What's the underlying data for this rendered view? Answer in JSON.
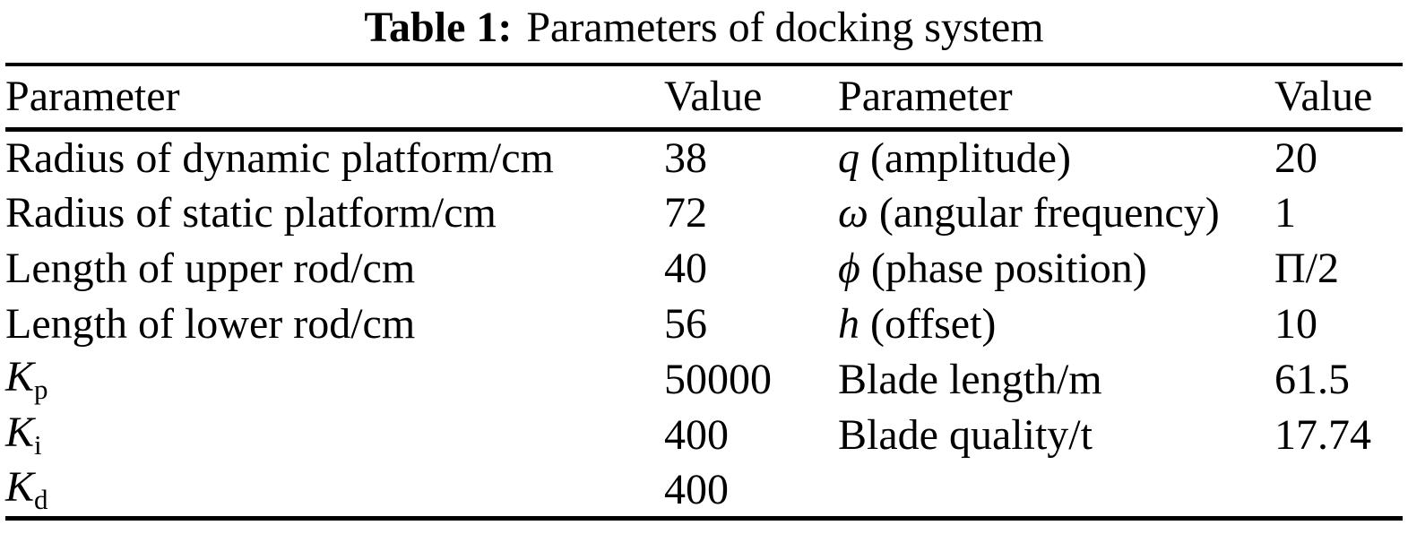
{
  "title": {
    "label": "Table 1:",
    "text": "Parameters of docking system"
  },
  "colors": {
    "text": "#000000",
    "background": "#ffffff",
    "rule": "#000000"
  },
  "table": {
    "headers": [
      "Parameter",
      "Value",
      "Parameter",
      "Value"
    ],
    "rows": [
      {
        "c1": [
          [
            "n",
            "Radius of dynamic platform/cm"
          ]
        ],
        "c2": [
          [
            "n",
            "38"
          ]
        ],
        "c3": [
          [
            "i",
            "q"
          ],
          [
            "n",
            " (amplitude)"
          ]
        ],
        "c4": [
          [
            "n",
            "20"
          ]
        ]
      },
      {
        "c1": [
          [
            "n",
            "Radius of static platform/cm"
          ]
        ],
        "c2": [
          [
            "n",
            "72"
          ]
        ],
        "c3": [
          [
            "i",
            "ω"
          ],
          [
            "n",
            " (angular frequency)"
          ]
        ],
        "c4": [
          [
            "n",
            "1"
          ]
        ]
      },
      {
        "c1": [
          [
            "n",
            "Length of upper rod/cm"
          ]
        ],
        "c2": [
          [
            "n",
            "40"
          ]
        ],
        "c3": [
          [
            "i",
            "ϕ"
          ],
          [
            "n",
            " (phase position)"
          ]
        ],
        "c4": [
          [
            "n",
            "Π/2"
          ]
        ]
      },
      {
        "c1": [
          [
            "n",
            "Length of lower rod/cm"
          ]
        ],
        "c2": [
          [
            "n",
            "56"
          ]
        ],
        "c3": [
          [
            "i",
            "h"
          ],
          [
            "n",
            " (offset)"
          ]
        ],
        "c4": [
          [
            "n",
            "10"
          ]
        ]
      },
      {
        "c1": [
          [
            "i",
            "K"
          ],
          [
            "sub",
            "p"
          ]
        ],
        "c2": [
          [
            "n",
            "50000"
          ]
        ],
        "c3": [
          [
            "n",
            "Blade length/m"
          ]
        ],
        "c4": [
          [
            "n",
            "61.5"
          ]
        ]
      },
      {
        "c1": [
          [
            "i",
            "K"
          ],
          [
            "sub",
            "i"
          ]
        ],
        "c2": [
          [
            "n",
            "400"
          ]
        ],
        "c3": [
          [
            "n",
            "Blade quality/t"
          ]
        ],
        "c4": [
          [
            "n",
            "17.74"
          ]
        ]
      },
      {
        "c1": [
          [
            "i",
            "K"
          ],
          [
            "sub",
            "d"
          ]
        ],
        "c2": [
          [
            "n",
            "400"
          ]
        ],
        "c3": [],
        "c4": []
      }
    ]
  }
}
